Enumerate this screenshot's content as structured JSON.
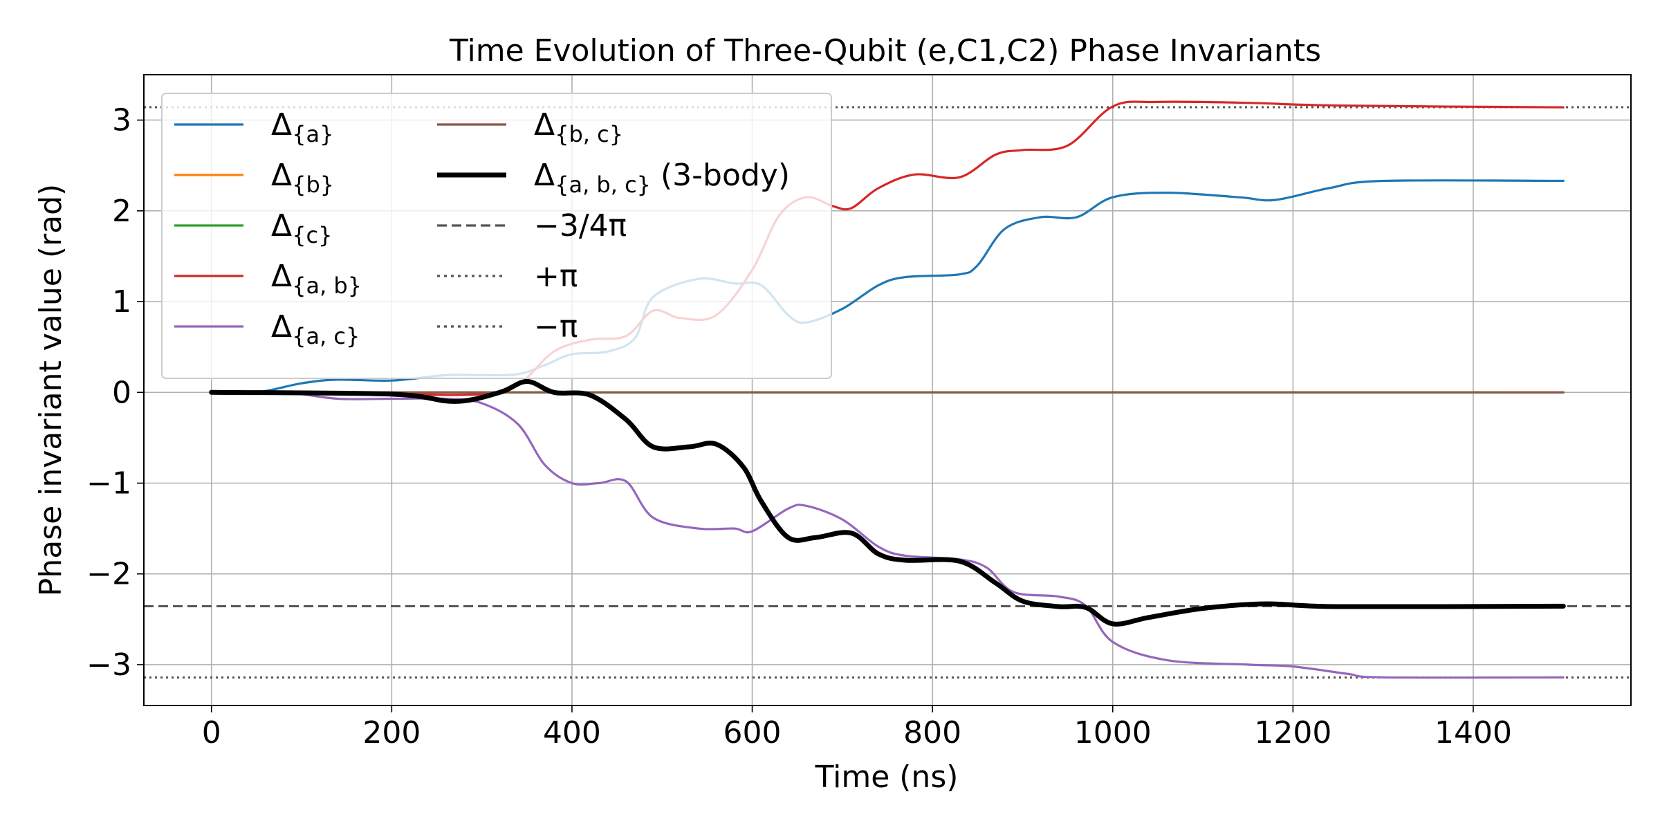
{
  "chart_data": {
    "type": "line",
    "title": "Time Evolution of Three-Qubit (e,C1,C2) Phase Invariants",
    "xlabel": "Time (ns)",
    "ylabel": "Phase invariant value (rad)",
    "xlim": [
      -75,
      1575
    ],
    "ylim": [
      -3.45,
      3.5
    ],
    "xticks": [
      0,
      200,
      400,
      600,
      800,
      1000,
      1200,
      1400
    ],
    "xtick_labels": [
      "0",
      "200",
      "400",
      "600",
      "800",
      "1000",
      "1200",
      "1400"
    ],
    "yticks": [
      -3,
      -2,
      -1,
      0,
      1,
      2,
      3
    ],
    "ytick_labels": [
      "−3",
      "−2",
      "−1",
      "0",
      "1",
      "2",
      "3"
    ],
    "grid": true,
    "legend_position": "top-left",
    "series": [
      {
        "name": "Δ{a}",
        "color": "#1f77b4",
        "width": "normal",
        "style": "solid",
        "points": [
          [
            0,
            0
          ],
          [
            50,
            0
          ],
          [
            100,
            0.1
          ],
          [
            140,
            0.14
          ],
          [
            200,
            0.13
          ],
          [
            260,
            0.19
          ],
          [
            300,
            0.19
          ],
          [
            340,
            0.2
          ],
          [
            370,
            0.3
          ],
          [
            400,
            0.42
          ],
          [
            440,
            0.45
          ],
          [
            470,
            0.6
          ],
          [
            490,
            1.05
          ],
          [
            540,
            1.25
          ],
          [
            580,
            1.2
          ],
          [
            610,
            1.18
          ],
          [
            640,
            0.85
          ],
          [
            660,
            0.77
          ],
          [
            700,
            0.92
          ],
          [
            740,
            1.18
          ],
          [
            770,
            1.27
          ],
          [
            830,
            1.3
          ],
          [
            850,
            1.4
          ],
          [
            880,
            1.8
          ],
          [
            920,
            1.93
          ],
          [
            960,
            1.93
          ],
          [
            1000,
            2.15
          ],
          [
            1060,
            2.2
          ],
          [
            1140,
            2.15
          ],
          [
            1180,
            2.12
          ],
          [
            1240,
            2.25
          ],
          [
            1300,
            2.33
          ],
          [
            1500,
            2.33
          ]
        ]
      },
      {
        "name": "Δ{b}",
        "color": "#ff7f0e",
        "width": "normal",
        "style": "solid",
        "points": [
          [
            0,
            0
          ],
          [
            1500,
            0
          ]
        ]
      },
      {
        "name": "Δ{c}",
        "color": "#2ca02c",
        "width": "normal",
        "style": "solid",
        "points": [
          [
            0,
            0
          ],
          [
            1500,
            0
          ]
        ]
      },
      {
        "name": "Δ{a,b}",
        "color": "#d62728",
        "width": "normal",
        "style": "solid",
        "points": [
          [
            0,
            0
          ],
          [
            100,
            0
          ],
          [
            200,
            -0.02
          ],
          [
            300,
            -0.02
          ],
          [
            340,
            0.08
          ],
          [
            380,
            0.45
          ],
          [
            420,
            0.58
          ],
          [
            460,
            0.62
          ],
          [
            490,
            0.9
          ],
          [
            520,
            0.82
          ],
          [
            560,
            0.85
          ],
          [
            600,
            1.35
          ],
          [
            630,
            1.95
          ],
          [
            660,
            2.15
          ],
          [
            690,
            2.05
          ],
          [
            710,
            2.03
          ],
          [
            740,
            2.25
          ],
          [
            780,
            2.4
          ],
          [
            830,
            2.37
          ],
          [
            870,
            2.62
          ],
          [
            900,
            2.67
          ],
          [
            950,
            2.72
          ],
          [
            1000,
            3.15
          ],
          [
            1050,
            3.2
          ],
          [
            1150,
            3.19
          ],
          [
            1250,
            3.16
          ],
          [
            1500,
            3.14
          ]
        ]
      },
      {
        "name": "Δ{a,c}",
        "color": "#9467bd",
        "width": "normal",
        "style": "solid",
        "points": [
          [
            0,
            0
          ],
          [
            80,
            0
          ],
          [
            140,
            -0.07
          ],
          [
            200,
            -0.07
          ],
          [
            260,
            -0.07
          ],
          [
            300,
            -0.12
          ],
          [
            340,
            -0.35
          ],
          [
            370,
            -0.8
          ],
          [
            400,
            -1.0
          ],
          [
            430,
            -1.0
          ],
          [
            460,
            -0.98
          ],
          [
            490,
            -1.38
          ],
          [
            540,
            -1.5
          ],
          [
            580,
            -1.5
          ],
          [
            600,
            -1.53
          ],
          [
            640,
            -1.28
          ],
          [
            660,
            -1.25
          ],
          [
            700,
            -1.4
          ],
          [
            740,
            -1.7
          ],
          [
            770,
            -1.8
          ],
          [
            830,
            -1.84
          ],
          [
            860,
            -1.93
          ],
          [
            890,
            -2.2
          ],
          [
            940,
            -2.25
          ],
          [
            970,
            -2.35
          ],
          [
            1000,
            -2.75
          ],
          [
            1060,
            -2.95
          ],
          [
            1150,
            -3.0
          ],
          [
            1200,
            -3.02
          ],
          [
            1260,
            -3.1
          ],
          [
            1300,
            -3.14
          ],
          [
            1500,
            -3.14
          ]
        ]
      },
      {
        "name": "Δ{b,c}",
        "color": "#8c564b",
        "width": "normal",
        "style": "solid",
        "points": [
          [
            0,
            0
          ],
          [
            1500,
            0
          ]
        ]
      },
      {
        "name": "Δ{a,b,c} (3-body)",
        "color": "#000000",
        "width": "thick",
        "style": "solid",
        "points": [
          [
            0,
            0
          ],
          [
            200,
            -0.02
          ],
          [
            270,
            -0.1
          ],
          [
            320,
            0
          ],
          [
            350,
            0.12
          ],
          [
            380,
            0
          ],
          [
            420,
            -0.03
          ],
          [
            460,
            -0.3
          ],
          [
            490,
            -0.6
          ],
          [
            530,
            -0.6
          ],
          [
            560,
            -0.57
          ],
          [
            590,
            -0.82
          ],
          [
            610,
            -1.2
          ],
          [
            640,
            -1.6
          ],
          [
            670,
            -1.6
          ],
          [
            710,
            -1.55
          ],
          [
            740,
            -1.78
          ],
          [
            770,
            -1.85
          ],
          [
            830,
            -1.86
          ],
          [
            870,
            -2.1
          ],
          [
            900,
            -2.3
          ],
          [
            940,
            -2.36
          ],
          [
            970,
            -2.37
          ],
          [
            1000,
            -2.55
          ],
          [
            1040,
            -2.48
          ],
          [
            1100,
            -2.38
          ],
          [
            1170,
            -2.33
          ],
          [
            1250,
            -2.36
          ],
          [
            1500,
            -2.356
          ]
        ]
      }
    ],
    "reference_lines": [
      {
        "name": "−3/4π",
        "value": -2.356,
        "color": "#555555",
        "style": "dashed"
      },
      {
        "name": "+π",
        "value": 3.1416,
        "color": "#555555",
        "style": "dotted"
      },
      {
        "name": "−π",
        "value": -3.1416,
        "color": "#555555",
        "style": "dotted"
      }
    ],
    "legend": {
      "entries": [
        {
          "base": "Δ",
          "sub": "{a}",
          "suffix": "",
          "color": "#1f77b4",
          "style": "solid",
          "width": "normal"
        },
        {
          "base": "Δ",
          "sub": "{b}",
          "suffix": "",
          "color": "#ff7f0e",
          "style": "solid",
          "width": "normal"
        },
        {
          "base": "Δ",
          "sub": "{c}",
          "suffix": "",
          "color": "#2ca02c",
          "style": "solid",
          "width": "normal"
        },
        {
          "base": "Δ",
          "sub": "{a, b}",
          "suffix": "",
          "color": "#d62728",
          "style": "solid",
          "width": "normal"
        },
        {
          "base": "Δ",
          "sub": "{a, c}",
          "suffix": "",
          "color": "#9467bd",
          "style": "solid",
          "width": "normal"
        },
        {
          "base": "Δ",
          "sub": "{b, c}",
          "suffix": "",
          "color": "#8c564b",
          "style": "solid",
          "width": "normal"
        },
        {
          "base": "Δ",
          "sub": "{a, b, c}",
          "suffix": " (3-body)",
          "color": "#000000",
          "style": "solid",
          "width": "thick"
        },
        {
          "base": "−3/4π",
          "sub": "",
          "suffix": "",
          "color": "#555555",
          "style": "dashed",
          "width": "normal"
        },
        {
          "base": "+π",
          "sub": "",
          "suffix": "",
          "color": "#555555",
          "style": "dotted",
          "width": "normal"
        },
        {
          "base": "−π",
          "sub": "",
          "suffix": "",
          "color": "#555555",
          "style": "dotted",
          "width": "normal"
        }
      ]
    }
  }
}
